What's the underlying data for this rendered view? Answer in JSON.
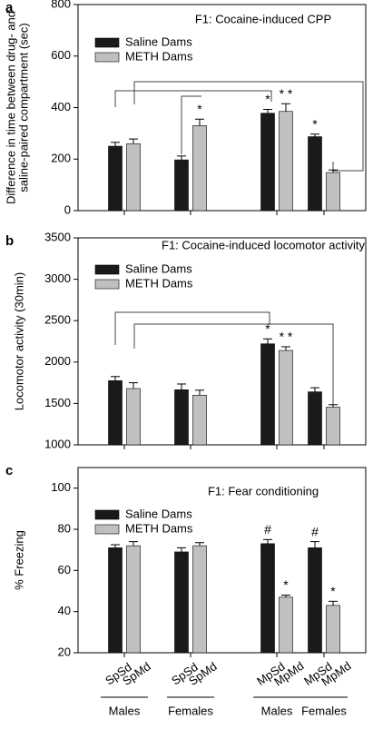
{
  "chart_data": [
    {
      "type": "bar",
      "panel_label": "a",
      "title": "F1: Cocaine-induced CPP",
      "ylabel": [
        "Difference in time between drug- and",
        "saline-paired compartment (sec)"
      ],
      "categories": [
        null,
        null,
        null,
        null
      ],
      "series": [
        {
          "name": "Saline Dams",
          "color": "#1a1a1a",
          "values": [
            250,
            197,
            378,
            287
          ],
          "errors": [
            15,
            15,
            15,
            10
          ],
          "annotations": [
            null,
            null,
            "*",
            "*"
          ]
        },
        {
          "name": "METH Dams",
          "color": "#c0c0c0",
          "values": [
            260,
            330,
            385,
            148
          ],
          "errors": [
            18,
            25,
            30,
            10
          ],
          "annotations": [
            null,
            "*",
            "* *",
            null
          ]
        }
      ],
      "ylim": [
        0,
        800
      ],
      "yticks": [
        0,
        200,
        400,
        600,
        800
      ]
    },
    {
      "type": "bar",
      "panel_label": "b",
      "title": "F1: Cocaine-induced locomotor activity",
      "ylabel": [
        "Locomotor activity (30min)"
      ],
      "categories": [
        null,
        null,
        null,
        null
      ],
      "series": [
        {
          "name": "Saline Dams",
          "color": "#1a1a1a",
          "values": [
            1775,
            1665,
            2220,
            1640
          ],
          "errors": [
            50,
            70,
            60,
            50
          ],
          "annotations": [
            null,
            null,
            "*",
            null
          ]
        },
        {
          "name": "METH Dams",
          "color": "#c0c0c0",
          "values": [
            1680,
            1600,
            2140,
            1455
          ],
          "errors": [
            70,
            60,
            45,
            30
          ],
          "annotations": [
            null,
            null,
            "* *",
            null
          ]
        }
      ],
      "ylim": [
        1000,
        3500
      ],
      "yticks": [
        1000,
        1500,
        2000,
        2500,
        3000,
        3500
      ]
    },
    {
      "type": "bar",
      "panel_label": "c",
      "title": "F1: Fear conditioning",
      "ylabel": [
        "% Freezing"
      ],
      "categories": [
        "Males",
        "Females",
        "Males",
        "Females"
      ],
      "bar_labels": [
        [
          "SpSd",
          "SpMd"
        ],
        [
          "SpSd",
          "SpMd"
        ],
        [
          "MpSd",
          "MpMd"
        ],
        [
          "MpSd",
          "MpMd"
        ]
      ],
      "series": [
        {
          "name": "Saline Dams",
          "color": "#1a1a1a",
          "values": [
            71,
            69,
            73,
            71
          ],
          "errors": [
            1.5,
            2,
            2,
            3
          ],
          "annotations": [
            null,
            null,
            "#",
            "#"
          ]
        },
        {
          "name": "METH Dams",
          "color": "#c0c0c0",
          "values": [
            72,
            72,
            47,
            43
          ],
          "errors": [
            2,
            1.5,
            1,
            2
          ],
          "annotations": [
            null,
            null,
            "*",
            "*"
          ]
        }
      ],
      "ylim": [
        20,
        110
      ],
      "yticks": [
        20,
        40,
        60,
        80,
        100
      ]
    }
  ]
}
